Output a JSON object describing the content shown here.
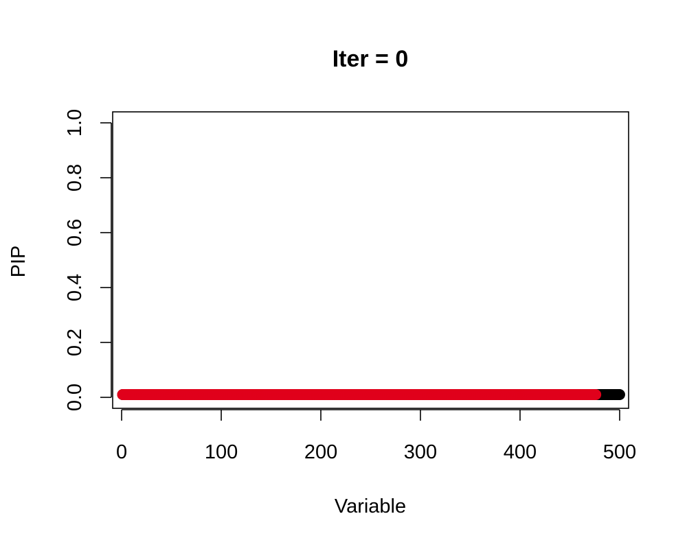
{
  "chart_data": {
    "type": "scatter",
    "title": "Iter = 0",
    "xlabel": "Variable",
    "ylabel": "PIP",
    "xlim": [
      -9,
      509
    ],
    "ylim": [
      -0.04,
      1.04
    ],
    "xticks": [
      0,
      100,
      200,
      300,
      400,
      500
    ],
    "yticks": [
      0.0,
      0.2,
      0.4,
      0.6,
      0.8,
      1.0
    ],
    "xtick_labels": [
      "0",
      "100",
      "200",
      "300",
      "400",
      "500"
    ],
    "ytick_labels": [
      "0.0",
      "0.2",
      "0.4",
      "0.6",
      "0.8",
      "1.0"
    ],
    "grid": false,
    "legend": "none",
    "series": [
      {
        "color": "#000000",
        "x_range": [
          1,
          500
        ],
        "y": 0.01
      },
      {
        "color": "#E0001B",
        "x_range": [
          1,
          476
        ],
        "y": 0.01
      }
    ]
  }
}
